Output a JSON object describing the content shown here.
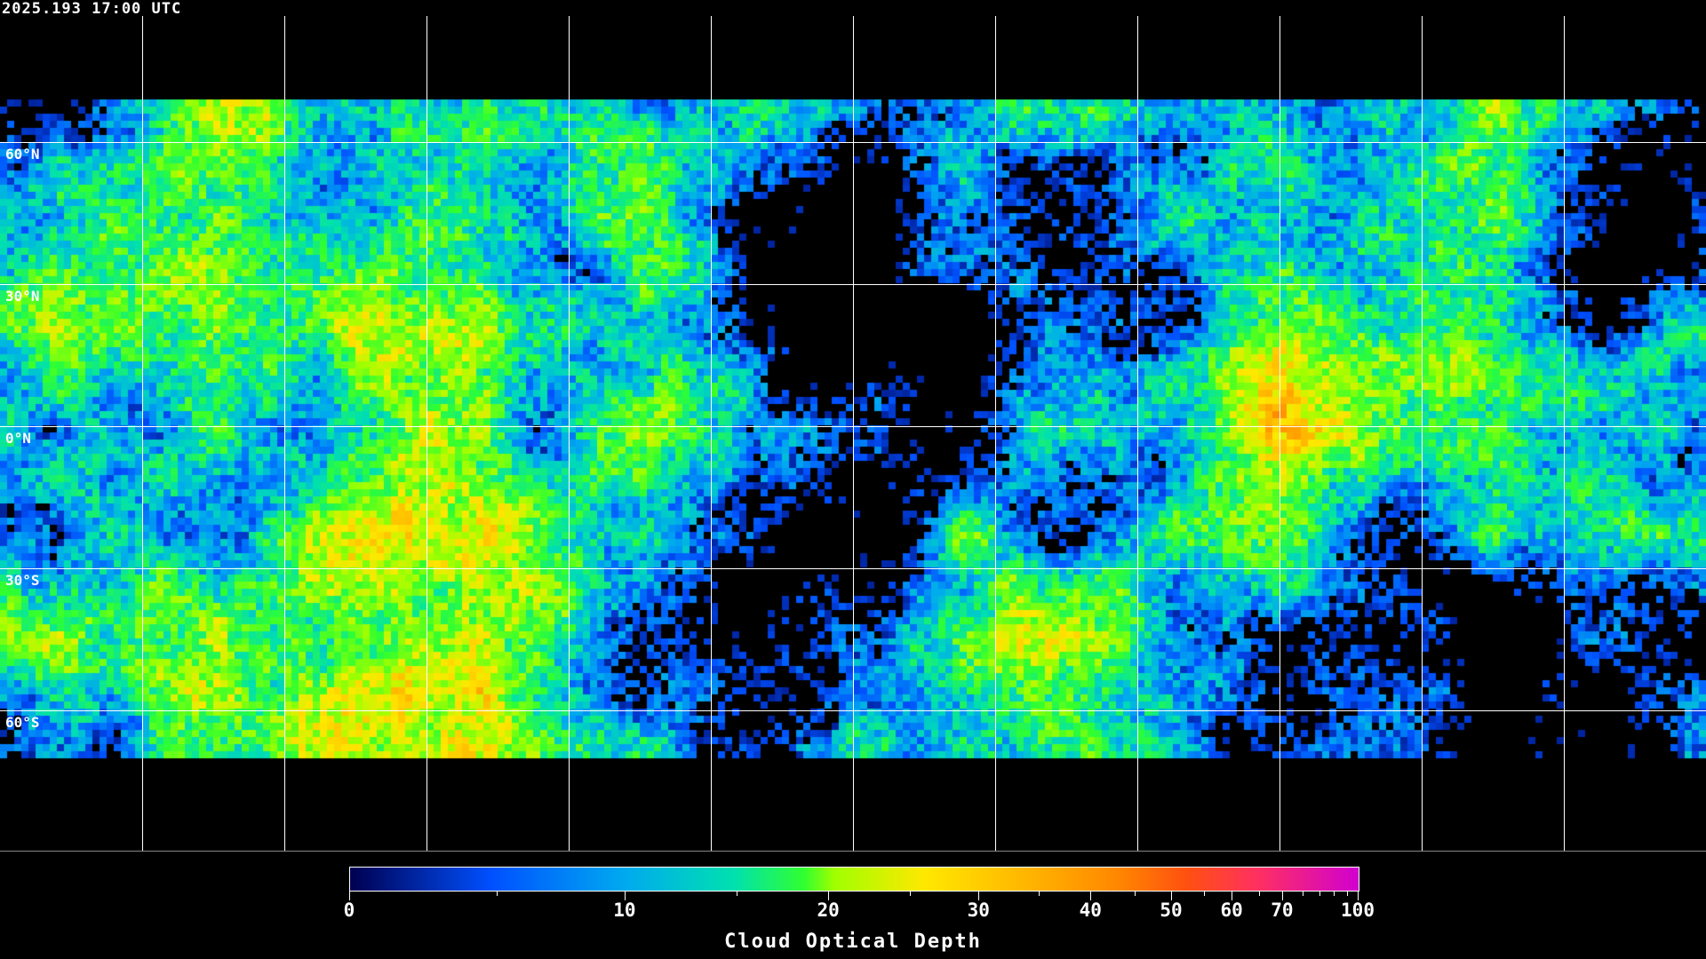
{
  "timestamp": "2025.193 17:00 UTC",
  "map": {
    "lat_labels": [
      "60°N",
      "30°N",
      "0°N",
      "30°S",
      "60°S"
    ],
    "background_color": "#000000",
    "grid_color": "#ffffff",
    "coastline_color": "#ffffff"
  },
  "colorbar": {
    "title": "Cloud Optical Depth",
    "range": [
      0,
      100
    ],
    "tick_labels": [
      "0",
      "10",
      "20",
      "30",
      "40",
      "50",
      "60",
      "70",
      "100"
    ],
    "colors": [
      "#000050",
      "#0050ff",
      "#00a8f0",
      "#00e0b0",
      "#30ff30",
      "#a0ff00",
      "#ffe800",
      "#ffc000",
      "#ff8800",
      "#ff5010",
      "#ff3060",
      "#d000d0"
    ]
  }
}
